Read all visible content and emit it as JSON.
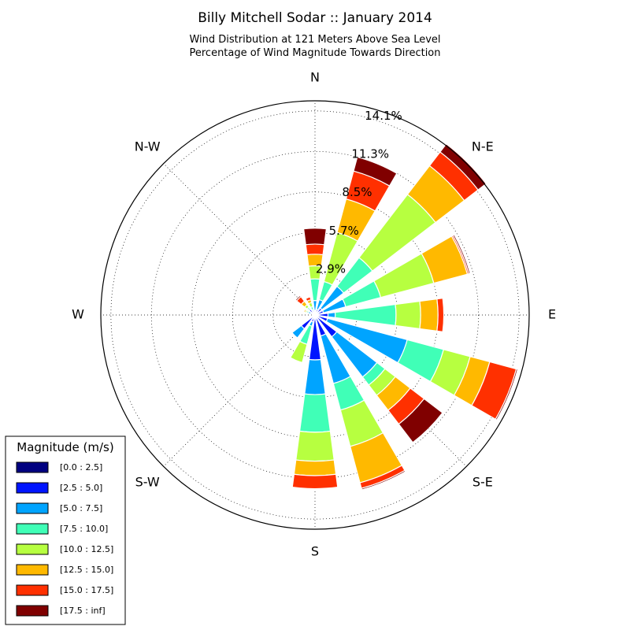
{
  "chart_data": {
    "type": "windrose",
    "title": "Billy Mitchell Sodar :: January 2014",
    "subtitle_lines": [
      "Wind Distribution at 121 Meters Above Sea Level",
      "Percentage of Wind Magnitude Towards Direction"
    ],
    "directions": [
      "N",
      "N-E",
      "E",
      "S-E",
      "S",
      "S-W",
      "W",
      "N-W"
    ],
    "radial_ticks": [
      {
        "value": 2.9,
        "label": "2.9%"
      },
      {
        "value": 5.7,
        "label": "5.7%"
      },
      {
        "value": 8.5,
        "label": "8.5%"
      },
      {
        "value": 11.3,
        "label": "11.3%"
      },
      {
        "value": 14.1,
        "label": "14.1%"
      }
    ],
    "rmax": 14.8,
    "legend": {
      "title": "Magnitude (m/s)",
      "placement": "bottom-left",
      "bins": [
        {
          "label": "[0.0 : 2.5]",
          "color": "#000080"
        },
        {
          "label": "[2.5 : 5.0]",
          "color": "#0014ff"
        },
        {
          "label": "[5.0 : 7.5]",
          "color": "#00a4ff"
        },
        {
          "label": "[7.5 : 10.0]",
          "color": "#40ffb7"
        },
        {
          "label": "[10.0 : 12.5]",
          "color": "#b7ff40"
        },
        {
          "label": "[12.5 : 15.0]",
          "color": "#ffb900"
        },
        {
          "label": "[15.0 : 17.5]",
          "color": "#ff3000"
        },
        {
          "label": "[17.5 : inf]",
          "color": "#800000"
        }
      ]
    },
    "sector_width_deg": 15,
    "sectors": [
      {
        "dir_deg": 0,
        "cumulative": [
          0.1,
          0.3,
          1.0,
          2.5,
          3.4,
          4.2,
          4.9,
          6.0
        ]
      },
      {
        "dir_deg": 22.5,
        "cumulative": [
          0.1,
          0.4,
          1.1,
          2.4,
          5.9,
          8.3,
          10.3,
          11.3
        ]
      },
      {
        "dir_deg": 45,
        "cumulative": [
          0.1,
          0.6,
          2.5,
          5.0,
          10.5,
          13.0,
          14.2,
          14.9
        ]
      },
      {
        "dir_deg": 67.5,
        "cumulative": [
          0.1,
          0.6,
          2.2,
          4.7,
          8.5,
          10.9,
          11.0,
          11.1
        ]
      },
      {
        "dir_deg": 90,
        "cumulative": [
          0.1,
          0.9,
          1.4,
          5.6,
          7.3,
          8.5,
          8.9,
          8.9
        ]
      },
      {
        "dir_deg": 112.5,
        "cumulative": [
          0.1,
          0.9,
          6.6,
          9.2,
          11.1,
          12.5,
          14.4,
          14.5
        ]
      },
      {
        "dir_deg": 135,
        "cumulative": [
          0.1,
          1.9,
          5.4,
          6.1,
          7.0,
          8.3,
          9.5,
          11.1
        ]
      },
      {
        "dir_deg": 157.5,
        "cumulative": [
          0.1,
          1.5,
          4.9,
          6.8,
          9.4,
          12.0,
          12.4,
          12.5
        ]
      },
      {
        "dir_deg": 180,
        "cumulative": [
          0.1,
          3.1,
          5.5,
          8.1,
          10.1,
          11.1,
          12.0,
          12.0
        ]
      },
      {
        "dir_deg": 202.5,
        "cumulative": [
          0.1,
          0.5,
          0.8,
          2.1,
          3.4,
          3.4,
          3.4,
          3.4
        ]
      },
      {
        "dir_deg": 225,
        "cumulative": [
          0.1,
          1.2,
          2.0,
          2.0,
          2.0,
          2.0,
          2.0,
          2.0
        ]
      },
      {
        "dir_deg": 247.5,
        "cumulative": [
          0.1,
          0.3,
          0.3,
          0.3,
          0.3,
          0.3,
          0.3,
          0.3
        ]
      },
      {
        "dir_deg": 270,
        "cumulative": [
          0.1,
          0.2,
          0.2,
          0.2,
          0.2,
          0.2,
          0.2,
          0.2
        ]
      },
      {
        "dir_deg": 292.5,
        "cumulative": [
          0.1,
          0.3,
          0.5,
          0.6,
          0.7,
          0.8,
          0.8,
          0.8
        ]
      },
      {
        "dir_deg": 315,
        "cumulative": [
          0.1,
          0.5,
          0.6,
          0.7,
          0.9,
          1.2,
          1.6,
          1.7
        ]
      },
      {
        "dir_deg": 337.5,
        "cumulative": [
          0.1,
          0.3,
          0.4,
          0.6,
          0.9,
          1.1,
          1.3,
          1.3
        ]
      }
    ]
  }
}
